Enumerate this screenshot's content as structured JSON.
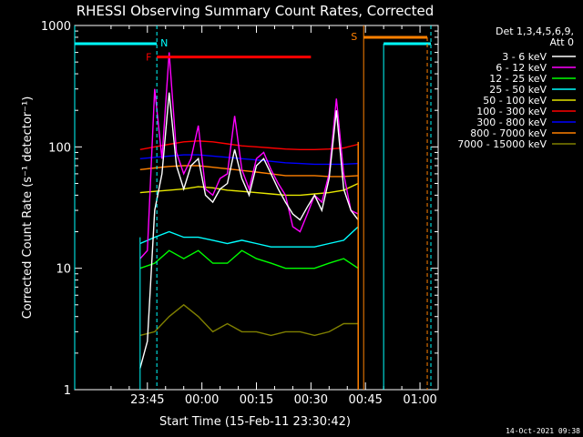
{
  "chart_data": {
    "type": "line",
    "title": "RHESSI Observing Summary Count Rates, Corrected",
    "xlabel": "Start Time (15-Feb-11 23:30:42)",
    "ylabel": "Corrected Count Rate (s⁻¹ detector⁻¹)",
    "yscale": "log",
    "ylim": [
      1,
      1000
    ],
    "xlim_minutes_after_2330": [
      -5,
      95
    ],
    "x_tick_labels": [
      "23:45",
      "00:00",
      "00:15",
      "00:30",
      "00:45",
      "01:00"
    ],
    "x_tick_minutes": [
      15,
      30,
      45,
      60,
      75,
      90
    ],
    "y_tick_labels": [
      "1",
      "10",
      "100",
      "1000"
    ],
    "y_tick_values": [
      1,
      10,
      100,
      1000
    ],
    "legend_header": [
      "Det 1,3,4,5,6,9,",
      "Att 0"
    ],
    "legend_position": "right",
    "footer_date": "14-Oct-2021 09:38",
    "data_window_minutes": [
      13,
      73
    ],
    "series": [
      {
        "name": "3 - 6 keV",
        "color": "#ffffff",
        "x": [
          13,
          15,
          17,
          19,
          21,
          23,
          25,
          27,
          29,
          31,
          33,
          35,
          37,
          39,
          41,
          43,
          45,
          47,
          49,
          51,
          53,
          55,
          57,
          59,
          61,
          63,
          65,
          67,
          69,
          71,
          73
        ],
        "y": [
          1.5,
          2.5,
          30,
          60,
          280,
          70,
          45,
          70,
          80,
          40,
          35,
          45,
          50,
          95,
          55,
          40,
          70,
          80,
          60,
          45,
          35,
          28,
          25,
          32,
          40,
          30,
          55,
          200,
          45,
          30,
          25
        ]
      },
      {
        "name": "6 - 12 keV",
        "color": "#ff00ff",
        "x": [
          13,
          15,
          17,
          19,
          21,
          23,
          25,
          27,
          29,
          31,
          33,
          35,
          37,
          39,
          41,
          43,
          45,
          47,
          49,
          51,
          53,
          55,
          57,
          59,
          61,
          63,
          65,
          67,
          69,
          71,
          73
        ],
        "y": [
          12,
          14,
          300,
          80,
          600,
          90,
          60,
          80,
          150,
          45,
          40,
          55,
          60,
          180,
          65,
          45,
          80,
          90,
          65,
          50,
          40,
          22,
          20,
          28,
          40,
          35,
          60,
          250,
          60,
          30,
          28
        ]
      },
      {
        "name": "12 - 25 keV",
        "color": "#00ff00",
        "x": [
          13,
          17,
          21,
          25,
          29,
          33,
          37,
          41,
          45,
          49,
          53,
          57,
          61,
          65,
          69,
          73
        ],
        "y": [
          10,
          11,
          14,
          12,
          14,
          11,
          11,
          14,
          12,
          11,
          10,
          10,
          10,
          11,
          12,
          10
        ]
      },
      {
        "name": "25 - 50 keV",
        "color": "#00ffff",
        "x": [
          13,
          17,
          21,
          25,
          29,
          33,
          37,
          41,
          45,
          49,
          53,
          57,
          61,
          65,
          69,
          73
        ],
        "y": [
          16,
          18,
          20,
          18,
          18,
          17,
          16,
          17,
          16,
          15,
          15,
          15,
          15,
          16,
          17,
          22
        ]
      },
      {
        "name": "50 - 100 keV",
        "color": "#e6e600",
        "x": [
          13,
          17,
          21,
          25,
          29,
          33,
          37,
          41,
          45,
          49,
          53,
          57,
          61,
          65,
          69,
          73
        ],
        "y": [
          42,
          43,
          44,
          45,
          47,
          46,
          44,
          43,
          42,
          41,
          40,
          40,
          41,
          42,
          44,
          50
        ]
      },
      {
        "name": "100 - 300 keV",
        "color": "#ff0000",
        "x": [
          13,
          17,
          21,
          25,
          29,
          33,
          37,
          41,
          45,
          49,
          53,
          57,
          61,
          65,
          69,
          73
        ],
        "y": [
          95,
          100,
          105,
          110,
          112,
          110,
          106,
          102,
          100,
          98,
          96,
          95,
          95,
          96,
          98,
          105
        ]
      },
      {
        "name": "300 - 800 keV",
        "color": "#0000ff",
        "x": [
          13,
          17,
          21,
          25,
          29,
          33,
          37,
          41,
          45,
          49,
          53,
          57,
          61,
          65,
          69,
          73
        ],
        "y": [
          80,
          82,
          84,
          86,
          86,
          84,
          82,
          80,
          78,
          76,
          74,
          73,
          72,
          72,
          72,
          73
        ]
      },
      {
        "name": "800 - 7000 keV",
        "color": "#ff8000",
        "x": [
          13,
          17,
          21,
          25,
          29,
          33,
          37,
          41,
          45,
          49,
          53,
          57,
          61,
          65,
          69,
          73
        ],
        "y": [
          65,
          67,
          69,
          70,
          70,
          68,
          66,
          64,
          62,
          60,
          58,
          58,
          58,
          57,
          57,
          58
        ]
      },
      {
        "name": "7000 - 15000 keV",
        "color": "#808000",
        "x": [
          13,
          17,
          21,
          25,
          29,
          33,
          37,
          41,
          45,
          49,
          53,
          57,
          61,
          65,
          69,
          73
        ],
        "y": [
          2.8,
          3,
          4,
          5,
          4,
          3,
          3.5,
          3,
          3,
          2.8,
          3,
          3,
          2.8,
          3,
          3.5,
          3.5
        ]
      }
    ],
    "annotations": [
      {
        "label": "N",
        "color": "#00ffff",
        "x": 17.6
      },
      {
        "label": "F",
        "color": "#ff0000",
        "x_start": 17.6,
        "x_end": 60,
        "y": 550
      },
      {
        "label": "S",
        "color": "#ff8000",
        "x": 74.5
      }
    ]
  }
}
